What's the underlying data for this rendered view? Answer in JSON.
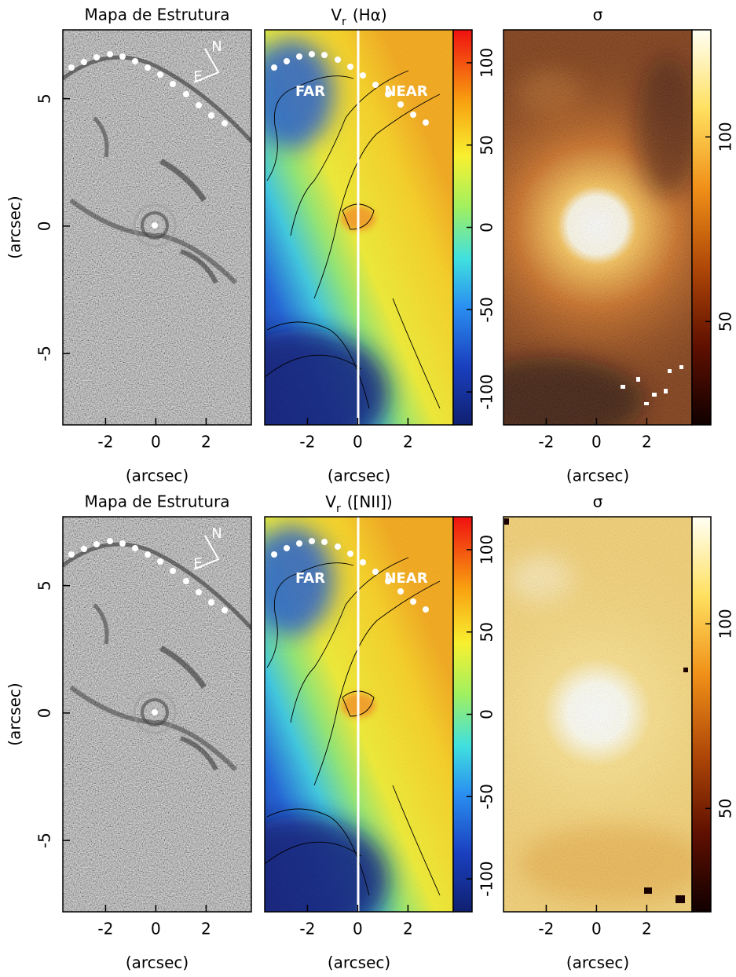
{
  "chart_data": [
    {
      "type": "image",
      "title": "Mapa de Estrutura",
      "colormap": "gray",
      "xlabel": "(arcsec)",
      "ylabel": "(arcsec)",
      "xlim": [
        -3.7,
        3.8
      ],
      "ylim": [
        -7.8,
        7.7
      ],
      "xticks": [
        -2,
        0,
        2
      ],
      "yticks": [
        -5,
        0,
        5
      ],
      "annotations": [
        "N",
        "E"
      ]
    },
    {
      "type": "image",
      "title_parts": [
        "V",
        "r",
        "(Hα)"
      ],
      "colormap": "jet",
      "xlabel": "(arcsec)",
      "xlim": [
        -3.7,
        3.8
      ],
      "ylim": [
        -7.8,
        7.7
      ],
      "xticks": [
        -2,
        0,
        2
      ],
      "clim": [
        -120,
        120
      ],
      "cticks": [
        -100,
        -50,
        0,
        50,
        100
      ],
      "annotations": [
        "FAR",
        "NEAR"
      ]
    },
    {
      "type": "image",
      "title": "σ",
      "colormap": "hot",
      "xlabel": "(arcsec)",
      "xlim": [
        -3.7,
        3.8
      ],
      "ylim": [
        -7.8,
        7.7
      ],
      "xticks": [
        -2,
        0,
        2
      ],
      "clim": [
        22,
        129
      ],
      "cticks": [
        50,
        100
      ]
    },
    {
      "type": "image",
      "title": "Mapa de Estrutura",
      "colormap": "gray",
      "xlabel": "(arcsec)",
      "ylabel": "(arcsec)",
      "xlim": [
        -3.7,
        3.8
      ],
      "ylim": [
        -7.8,
        7.7
      ],
      "xticks": [
        -2,
        0,
        2
      ],
      "yticks": [
        -5,
        0,
        5
      ],
      "annotations": [
        "N",
        "E"
      ]
    },
    {
      "type": "image",
      "title_parts": [
        "V",
        "r",
        "([NII])"
      ],
      "colormap": "jet",
      "xlabel": "(arcsec)",
      "xlim": [
        -3.7,
        3.8
      ],
      "ylim": [
        -7.8,
        7.7
      ],
      "xticks": [
        -2,
        0,
        2
      ],
      "clim": [
        -120,
        120
      ],
      "cticks": [
        -100,
        -50,
        0,
        50,
        100
      ],
      "annotations": [
        "FAR",
        "NEAR"
      ]
    },
    {
      "type": "image",
      "title": "σ",
      "colormap": "hot",
      "xlabel": "(arcsec)",
      "xlim": [
        -3.7,
        3.8
      ],
      "ylim": [
        -7.8,
        7.7
      ],
      "xticks": [
        -2,
        0,
        2
      ],
      "clim": [
        22,
        129
      ],
      "cticks": [
        50,
        100
      ]
    }
  ]
}
